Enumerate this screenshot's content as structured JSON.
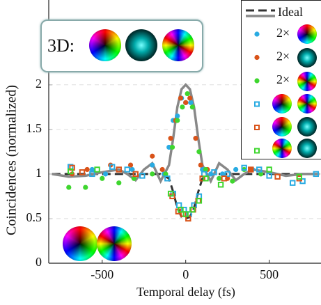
{
  "chart_data": {
    "type": "scatter",
    "x_label": "Temporal delay (fs)",
    "y_label": "Coincidences (normalized)",
    "inset_label": "3D:",
    "xlim": [
      -820,
      810
    ],
    "ylim": [
      0,
      2.95
    ],
    "xticks": [
      -500,
      0,
      500
    ],
    "yticks": [
      0,
      0.5,
      1,
      1.5,
      2
    ],
    "grid": true,
    "series": [
      {
        "name": "Ideal",
        "marker": "line",
        "dash": true,
        "color": "#333333",
        "x": [
          -800,
          -700,
          -600,
          -500,
          -400,
          -350,
          -300,
          -250,
          -200,
          -150,
          -100,
          -75,
          -50,
          -25,
          0,
          25,
          50,
          75,
          100,
          150,
          200,
          250,
          300,
          350,
          400,
          500,
          600,
          700,
          800
        ],
        "values": [
          1,
          1,
          1,
          1,
          1,
          1,
          1,
          1,
          1,
          1,
          0.95,
          0.8,
          0.62,
          0.52,
          0.5,
          0.52,
          0.62,
          0.8,
          0.95,
          1,
          1,
          1,
          1,
          1,
          1,
          1,
          1,
          1,
          1
        ]
      },
      {
        "marker": "line",
        "dash": false,
        "color": "#888888",
        "x": [
          -800,
          -700,
          -600,
          -500,
          -400,
          -350,
          -300,
          -250,
          -200,
          -150,
          -100,
          -75,
          -50,
          -25,
          0,
          25,
          50,
          75,
          100,
          150,
          200,
          250,
          300,
          350,
          400,
          500,
          600,
          700,
          800
        ],
        "values": [
          1,
          0.97,
          0.98,
          1.02,
          1.05,
          1,
          0.93,
          1.05,
          1.12,
          0.92,
          1.1,
          1.4,
          1.75,
          1.95,
          2,
          1.95,
          1.75,
          1.4,
          1.1,
          0.92,
          1.12,
          1.05,
          0.93,
          1,
          1.05,
          1.02,
          0.98,
          1,
          1
        ]
      },
      {
        "name": "2×",
        "marker": "o",
        "color": "#29abe2",
        "x": [
          -560,
          -480,
          -320,
          -200,
          -130,
          -100,
          -75,
          -50,
          -25,
          0,
          30,
          60,
          100,
          150,
          220,
          300,
          400
        ],
        "values": [
          1.05,
          1,
          1.05,
          1.1,
          1,
          1.3,
          1.6,
          1.65,
          1.85,
          1.8,
          1.8,
          1.4,
          1.05,
          1,
          1,
          1.05,
          1.05
        ]
      },
      {
        "name": "2×",
        "marker": "o",
        "color": "#d95319",
        "x": [
          -680,
          -590,
          -450,
          -330,
          -200,
          -140,
          -90,
          -60,
          -30,
          0,
          25,
          60,
          90,
          130,
          250,
          390
        ],
        "values": [
          1,
          1.05,
          1.1,
          1.1,
          1.2,
          1.05,
          1.4,
          1.6,
          1.85,
          1.8,
          1.85,
          1.4,
          1.1,
          1.05,
          0.95,
          1.05
        ]
      },
      {
        "name": "2×",
        "marker": "o",
        "color": "#3fd62f",
        "x": [
          -700,
          -600,
          -500,
          -400,
          -310,
          -200,
          -120,
          -80,
          -50,
          -20,
          10,
          40,
          80,
          120,
          200,
          280,
          350,
          450
        ],
        "values": [
          0.85,
          0.85,
          0.95,
          0.9,
          0.95,
          1,
          1,
          1.3,
          1.6,
          1.75,
          1.9,
          1.75,
          1.25,
          1.05,
          0.95,
          0.92,
          1.05,
          1
        ]
      },
      {
        "marker": "s",
        "color": "#29abe2",
        "x": [
          -690,
          -560,
          -440,
          -350,
          -260,
          -110,
          -75,
          -40,
          -10,
          20,
          50,
          80,
          110,
          170,
          250,
          350,
          440,
          500,
          640,
          700,
          780
        ],
        "values": [
          1.08,
          1,
          1.08,
          1.05,
          0.98,
          0.95,
          0.78,
          0.65,
          0.6,
          0.55,
          0.65,
          0.75,
          1,
          1.02,
          1,
          1.07,
          1.05,
          0.98,
          0.9,
          0.92,
          1
        ]
      },
      {
        "marker": "s",
        "color": "#d95319",
        "x": [
          -680,
          -620,
          -400,
          -300,
          -80,
          -45,
          -15,
          15,
          45,
          75,
          100,
          230,
          390,
          550,
          680
        ],
        "values": [
          1.07,
          1.02,
          1.05,
          1,
          0.75,
          0.58,
          0.55,
          0.5,
          0.6,
          0.7,
          0.95,
          0.95,
          1.05,
          0.97,
          0.95
        ]
      },
      {
        "marker": "s",
        "color": "#3fd62f",
        "x": [
          -690,
          -530,
          -90,
          -30,
          0,
          40,
          80,
          120,
          210,
          500,
          680
        ],
        "values": [
          1.03,
          1.05,
          0.78,
          0.6,
          0.55,
          0.6,
          0.7,
          0.95,
          0.88,
          1.05,
          0.97
        ]
      }
    ]
  }
}
